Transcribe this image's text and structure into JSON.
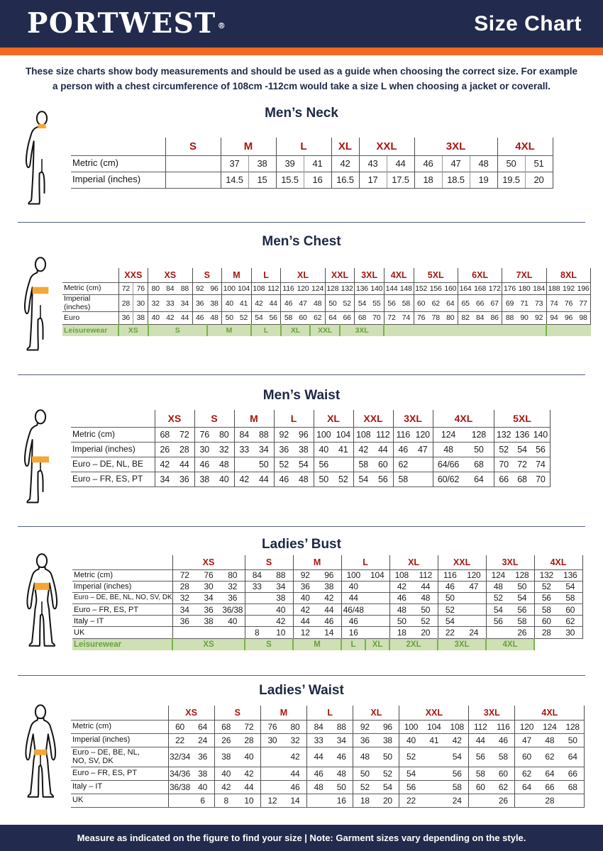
{
  "header": {
    "logo": "PORTWEST",
    "registered": "®",
    "title": "Size Chart"
  },
  "intro": "These size charts show body measurements and should be used as a guide when choosing the correct size. For example\na person with a chest circumference of 108cm -112cm would take a size L when choosing a jacket or coverall.",
  "footer": "Measure as indicated on the figure to find your size  |  Note: Garment sizes vary depending on the style.",
  "colors": {
    "navy": "#222b4d",
    "orange": "#f26a21",
    "red": "#a8160f",
    "green_text": "#68a13d",
    "green_bg": "#cfe0b5",
    "green_line": "#79b34a",
    "band": "#f4a636"
  },
  "sections": [
    {
      "id": "mens-neck",
      "title": "Men’s Neck",
      "figure": "male",
      "band": "neck",
      "table": {
        "groups": [
          {
            "label": "S",
            "cols": 1,
            "w": 2,
            "div": true
          },
          {
            "label": "M",
            "cols": 2,
            "div": true
          },
          {
            "label": "L",
            "cols": 2,
            "div": true
          },
          {
            "label": "XL",
            "cols": 1,
            "div": true
          },
          {
            "label": "XXL",
            "cols": 2,
            "div": true
          },
          {
            "label": "3XL",
            "cols": 3,
            "div": true
          },
          {
            "label": "4XL",
            "cols": 2,
            "div": true
          }
        ],
        "rows": [
          {
            "label": "Metric  (cm)",
            "cells": [
              "",
              "37",
              "38",
              "39",
              "41",
              "42",
              "43",
              "44",
              "46",
              "47",
              "48",
              "50",
              "51"
            ]
          },
          {
            "label": "Imperial (inches)",
            "cells": [
              "",
              "14.5",
              "15",
              "15.5",
              "16",
              "16.5",
              "17",
              "17.5",
              "18",
              "18.5",
              "19",
              "19.5",
              "20"
            ]
          }
        ]
      }
    },
    {
      "id": "mens-chest",
      "title": "Men’s Chest",
      "figure": "male",
      "band": "chest",
      "table": {
        "groups": [
          {
            "label": "XXS",
            "cols": 2,
            "div": true
          },
          {
            "label": "XS",
            "cols": 3
          },
          {
            "label": "S",
            "cols": 2
          },
          {
            "label": "M",
            "cols": 2
          },
          {
            "label": "L",
            "cols": 2
          },
          {
            "label": "XL",
            "cols": 3
          },
          {
            "label": "XXL",
            "cols": 2
          },
          {
            "label": "3XL",
            "cols": 2
          },
          {
            "label": "4XL",
            "cols": 2
          },
          {
            "label": "5XL",
            "cols": 3
          },
          {
            "label": "6XL",
            "cols": 3
          },
          {
            "label": "7XL",
            "cols": 3
          },
          {
            "label": "8XL",
            "cols": 3
          }
        ],
        "rows": [
          {
            "label": "Metric  (cm)",
            "cells": [
              "72",
              "76",
              "80",
              "84",
              "88",
              "92",
              "96",
              "100",
              "104",
              "108",
              "112",
              "116",
              "120",
              "124",
              "128",
              "132",
              "136",
              "140",
              "144",
              "148",
              "152",
              "156",
              "160",
              "164",
              "168",
              "172",
              "176",
              "180",
              "184",
              "188",
              "192",
              "196"
            ]
          },
          {
            "label": "Imperial (inches)",
            "cells": [
              "28",
              "30",
              "32",
              "33",
              "34",
              "36",
              "38",
              "40",
              "41",
              "42",
              "44",
              "46",
              "47",
              "48",
              "50",
              "52",
              "54",
              "55",
              "56",
              "58",
              "60",
              "62",
              "64",
              "65",
              "66",
              "67",
              "69",
              "71",
              "73",
              "74",
              "76",
              "77"
            ]
          },
          {
            "label": "Euro",
            "cells": [
              "36",
              "38",
              "40",
              "42",
              "44",
              "46",
              "48",
              "50",
              "52",
              "54",
              "56",
              "58",
              "60",
              "62",
              "64",
              "66",
              "68",
              "70",
              "72",
              "74",
              "76",
              "78",
              "80",
              "82",
              "84",
              "86",
              "88",
              "90",
              "92",
              "94",
              "96",
              "98"
            ]
          }
        ],
        "leisureLabel": "Leisurewear",
        "leisure": [
          {
            "label": "XS",
            "span": 2
          },
          {
            "label": "S",
            "span": 4
          },
          {
            "label": "M",
            "span": 3
          },
          {
            "label": "L",
            "span": 2
          },
          {
            "label": "XL",
            "span": 2
          },
          {
            "label": "XXL",
            "span": 2
          },
          {
            "label": "3XL",
            "span": 3
          },
          {
            "label": "",
            "span": 11
          },
          {
            "label": "",
            "span": 3
          }
        ]
      }
    },
    {
      "id": "mens-waist",
      "title": "Men’s Waist",
      "figure": "male",
      "band": "waist",
      "table": {
        "groups": [
          {
            "label": "XS",
            "cols": 2
          },
          {
            "label": "S",
            "cols": 2
          },
          {
            "label": "M",
            "cols": 2
          },
          {
            "label": "L",
            "cols": 2
          },
          {
            "label": "XL",
            "cols": 2
          },
          {
            "label": "XXL",
            "cols": 2
          },
          {
            "label": "3XL",
            "cols": 2
          },
          {
            "label": "4XL",
            "cols": 2,
            "w": 3.1
          },
          {
            "label": "5XL",
            "cols": 3,
            "w": 2.8
          }
        ],
        "rows": [
          {
            "label": "Metric  (cm)",
            "cells": [
              "68",
              "72",
              "76",
              "80",
              "84",
              "88",
              "92",
              "96",
              "100",
              "104",
              "108",
              "112",
              "116",
              "120",
              "124",
              "128",
              "132",
              "136",
              "140"
            ]
          },
          {
            "label": "Imperial (inches)",
            "cells": [
              "26",
              "28",
              "30",
              "32",
              "33",
              "34",
              "36",
              "38",
              "40",
              "41",
              "42",
              "44",
              "46",
              "47",
              "48",
              "50",
              "52",
              "54",
              "56"
            ]
          },
          {
            "label": "Euro – DE, NL, BE",
            "cells": [
              "42",
              "44",
              "46",
              "48",
              "",
              "50",
              "52",
              "54",
              "56",
              "",
              "58",
              "60",
              "62",
              "",
              "64/66",
              "68",
              "70",
              "72",
              "74"
            ]
          },
          {
            "label": "Euro – FR, ES, PT",
            "cells": [
              "34",
              "36",
              "38",
              "40",
              "42",
              "44",
              "46",
              "48",
              "50",
              "52",
              "54",
              "56",
              "58",
              "",
              "60/62",
              "64",
              "66",
              "68",
              "70"
            ]
          }
        ]
      }
    },
    {
      "id": "ladies-bust",
      "title": "Ladies’ Bust",
      "figure": "female",
      "band": "bust",
      "table": {
        "groups": [
          {
            "label": "XS",
            "cols": 3
          },
          {
            "label": "S",
            "cols": 2
          },
          {
            "label": "M",
            "cols": 2
          },
          {
            "label": "L",
            "cols": 2
          },
          {
            "label": "XL",
            "cols": 2
          },
          {
            "label": "XXL",
            "cols": 2
          },
          {
            "label": "3XL",
            "cols": 2
          },
          {
            "label": "4XL",
            "cols": 2
          }
        ],
        "rows": [
          {
            "label": "Metric  (cm)",
            "cells": [
              "72",
              "76",
              "80",
              "84",
              "88",
              "92",
              "96",
              "100",
              "104",
              "108",
              "112",
              "116",
              "120",
              "124",
              "128",
              "132",
              "136"
            ]
          },
          {
            "label": "Imperial (inches)",
            "cells": [
              "28",
              "30",
              "32",
              "33",
              "34",
              "36",
              "38",
              "40",
              "",
              "42",
              "44",
              "46",
              "47",
              "48",
              "50",
              "52",
              "54"
            ]
          },
          {
            "label": "Euro –  DE, BE, NL, NO, SV, DK",
            "labFs": 9.8,
            "cells": [
              "32",
              "34",
              "36",
              "",
              "38",
              "40",
              "42",
              "44",
              "",
              "46",
              "48",
              "50",
              "",
              "52",
              "54",
              "56",
              "58"
            ]
          },
          {
            "label": "Euro – FR, ES, PT",
            "cells": [
              "34",
              "36",
              "36/38",
              "",
              "40",
              "42",
              "44",
              "46/48",
              "",
              "48",
              "50",
              "52",
              "",
              "54",
              "56",
              "58",
              "60"
            ]
          },
          {
            "label": "Italy – IT",
            "cells": [
              "36",
              "38",
              "40",
              "",
              "42",
              "44",
              "46",
              "46",
              "",
              "50",
              "52",
              "54",
              "",
              "56",
              "58",
              "60",
              "62"
            ]
          },
          {
            "label": "UK",
            "cells": [
              "",
              "",
              "",
              "8",
              "10",
              "12",
              "14",
              "16",
              "",
              "18",
              "20",
              "22",
              "24",
              "",
              "26",
              "28",
              "30"
            ]
          }
        ],
        "leisureLabel": "Leisurewear",
        "leisure": [
          {
            "label": "XS",
            "span": 3
          },
          {
            "label": "S",
            "span": 2
          },
          {
            "label": "M",
            "span": 2
          },
          {
            "label": "L",
            "span": 1
          },
          {
            "label": "XL",
            "span": 1
          },
          {
            "label": "2XL",
            "span": 2
          },
          {
            "label": "3XL",
            "span": 2
          },
          {
            "label": "4XL",
            "span": 2
          },
          {
            "label": "",
            "span": 2,
            "nobg": true
          }
        ]
      }
    },
    {
      "id": "ladies-waist",
      "title": "Ladies’ Waist",
      "figure": "female",
      "band": "fwaist",
      "table": {
        "groups": [
          {
            "label": "XS",
            "cols": 2
          },
          {
            "label": "S",
            "cols": 2
          },
          {
            "label": "M",
            "cols": 2
          },
          {
            "label": "L",
            "cols": 2
          },
          {
            "label": "XL",
            "cols": 2
          },
          {
            "label": "XXL",
            "cols": 3
          },
          {
            "label": "3XL",
            "cols": 2
          },
          {
            "label": "4XL",
            "cols": 3
          }
        ],
        "rows": [
          {
            "label": "Metric  (cm)",
            "cells": [
              "60",
              "64",
              "68",
              "72",
              "76",
              "80",
              "84",
              "88",
              "92",
              "96",
              "100",
              "104",
              "108",
              "112",
              "116",
              "120",
              "124",
              "128"
            ]
          },
          {
            "label": "Imperial (inches)",
            "cells": [
              "22",
              "24",
              "26",
              "28",
              "30",
              "32",
              "33",
              "34",
              "36",
              "38",
              "40",
              "41",
              "42",
              "44",
              "46",
              "47",
              "48",
              "50"
            ]
          },
          {
            "label": "Euro – DE, BE, NL,\nNO, SV, DK",
            "h": 28,
            "cells": [
              "32/34",
              "36",
              "38",
              "40",
              "",
              "42",
              "44",
              "46",
              "48",
              "50",
              "52",
              "",
              "54",
              "56",
              "58",
              "60",
              "62",
              "64"
            ]
          },
          {
            "label": "Euro – FR, ES, PT",
            "cells": [
              "34/36",
              "38",
              "40",
              "42",
              "",
              "44",
              "46",
              "48",
              "50",
              "52",
              "54",
              "",
              "56",
              "58",
              "60",
              "62",
              "64",
              "66"
            ]
          },
          {
            "label": "Italy – IT",
            "cells": [
              "36/38",
              "40",
              "42",
              "44",
              "",
              "46",
              "48",
              "50",
              "52",
              "54",
              "56",
              "",
              "58",
              "60",
              "62",
              "64",
              "66",
              "68"
            ]
          },
          {
            "label": "UK",
            "cells": [
              "",
              "6",
              "8",
              "10",
              "12",
              "14",
              "",
              "16",
              "18",
              "20",
              "22",
              "",
              "24",
              "",
              "26",
              "",
              "28",
              ""
            ]
          }
        ]
      }
    }
  ]
}
